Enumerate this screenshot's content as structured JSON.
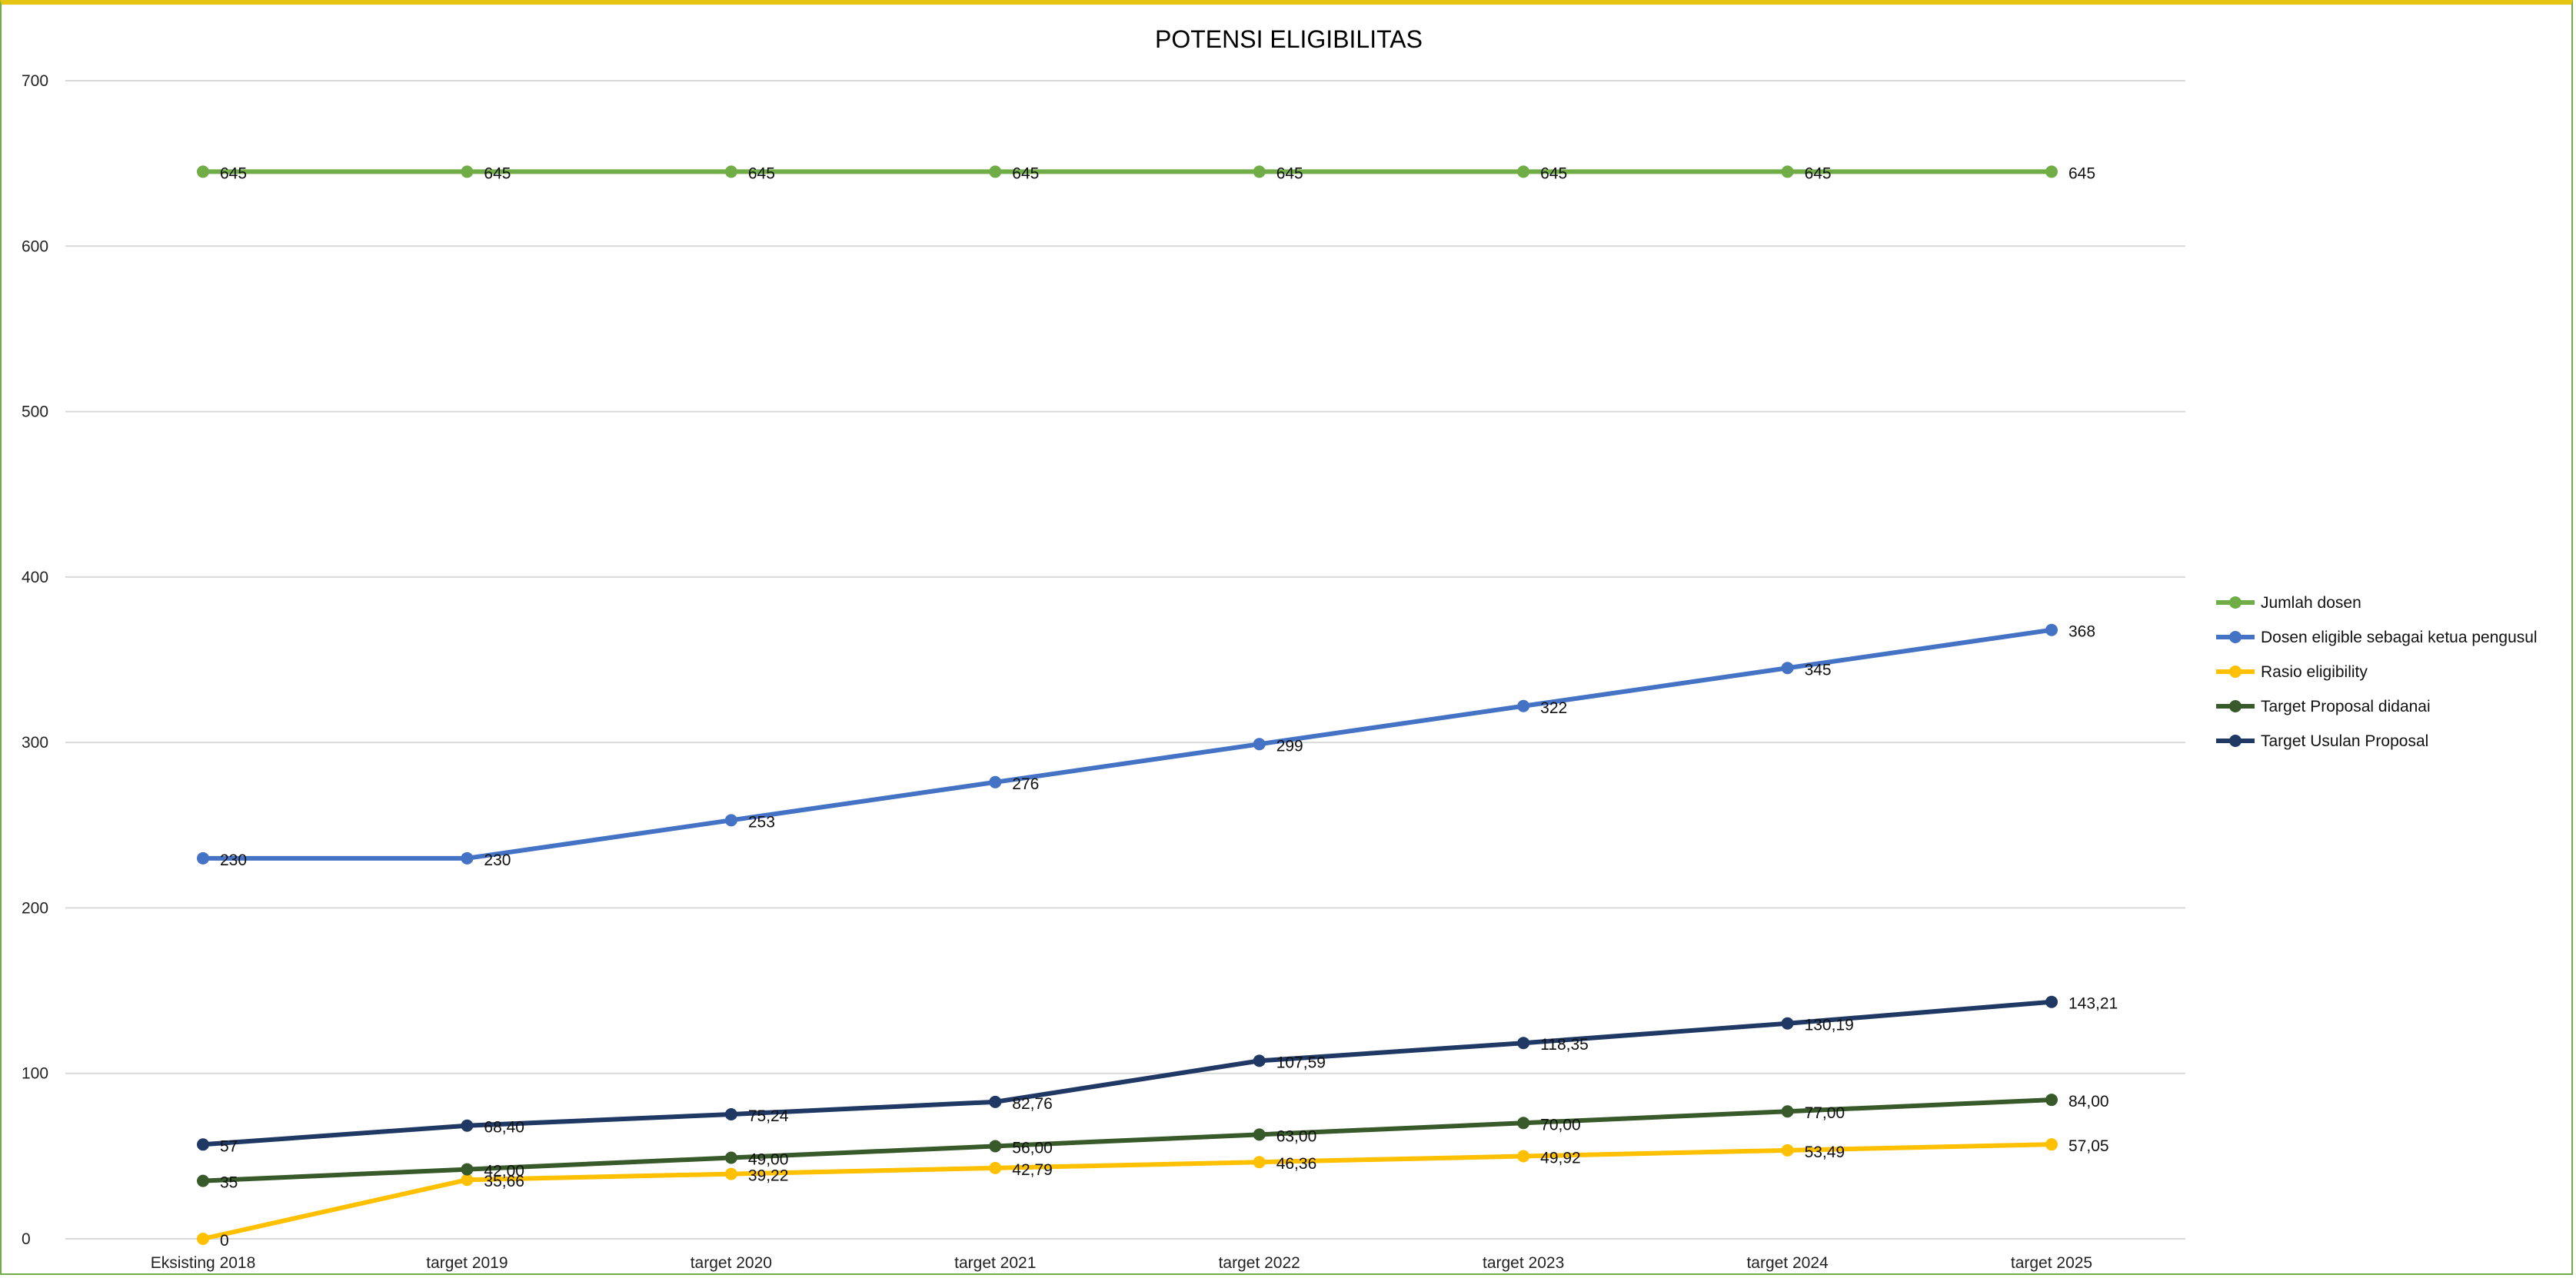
{
  "chart_data": {
    "type": "line",
    "title": "POTENSI ELIGIBILITAS",
    "categories": [
      "Eksisting 2018",
      "target 2019",
      "target 2020",
      "target 2021",
      "target 2022",
      "target 2023",
      "target 2024",
      "target 2025"
    ],
    "ylim": [
      0,
      700
    ],
    "yticks": [
      "0",
      "100",
      "200",
      "300",
      "400",
      "500",
      "600",
      "700"
    ],
    "grid": true,
    "legend_position": "right",
    "series": [
      {
        "name": "Jumlah dosen",
        "color": "#70ad47",
        "values": [
          645,
          645,
          645,
          645,
          645,
          645,
          645,
          645
        ],
        "labels": [
          "645",
          "645",
          "645",
          "645",
          "645",
          "645",
          "645",
          "645"
        ]
      },
      {
        "name": "Dosen eligible sebagai ketua pengusul",
        "color": "#4472c4",
        "values": [
          230,
          230,
          253,
          276,
          299,
          322,
          345,
          368
        ],
        "labels": [
          "230",
          "230",
          "253",
          "276",
          "299",
          "322",
          "345",
          "368"
        ]
      },
      {
        "name": "Rasio eligibility",
        "color": "#ffc000",
        "values": [
          0,
          35.66,
          39.22,
          42.79,
          46.36,
          49.92,
          53.49,
          57.05
        ],
        "labels": [
          "0",
          "35,66",
          "39,22",
          "42,79",
          "46,36",
          "49,92",
          "53,49",
          "57,05"
        ]
      },
      {
        "name": "Target Proposal didanai",
        "color": "#38592a",
        "values": [
          35,
          42,
          49,
          56,
          63,
          70,
          77,
          84
        ],
        "labels": [
          "35",
          "42,00",
          "49,00",
          "56,00",
          "63,00",
          "70,00",
          "77,00",
          "84,00"
        ]
      },
      {
        "name": "Target Usulan Proposal",
        "color": "#203864",
        "values": [
          57,
          68.4,
          75.24,
          82.76,
          107.59,
          118.35,
          130.19,
          143.21
        ],
        "labels": [
          "57",
          "68,40",
          "75,24",
          "82,76",
          "107,59",
          "118,35",
          "130,19",
          "143,21"
        ]
      }
    ]
  }
}
